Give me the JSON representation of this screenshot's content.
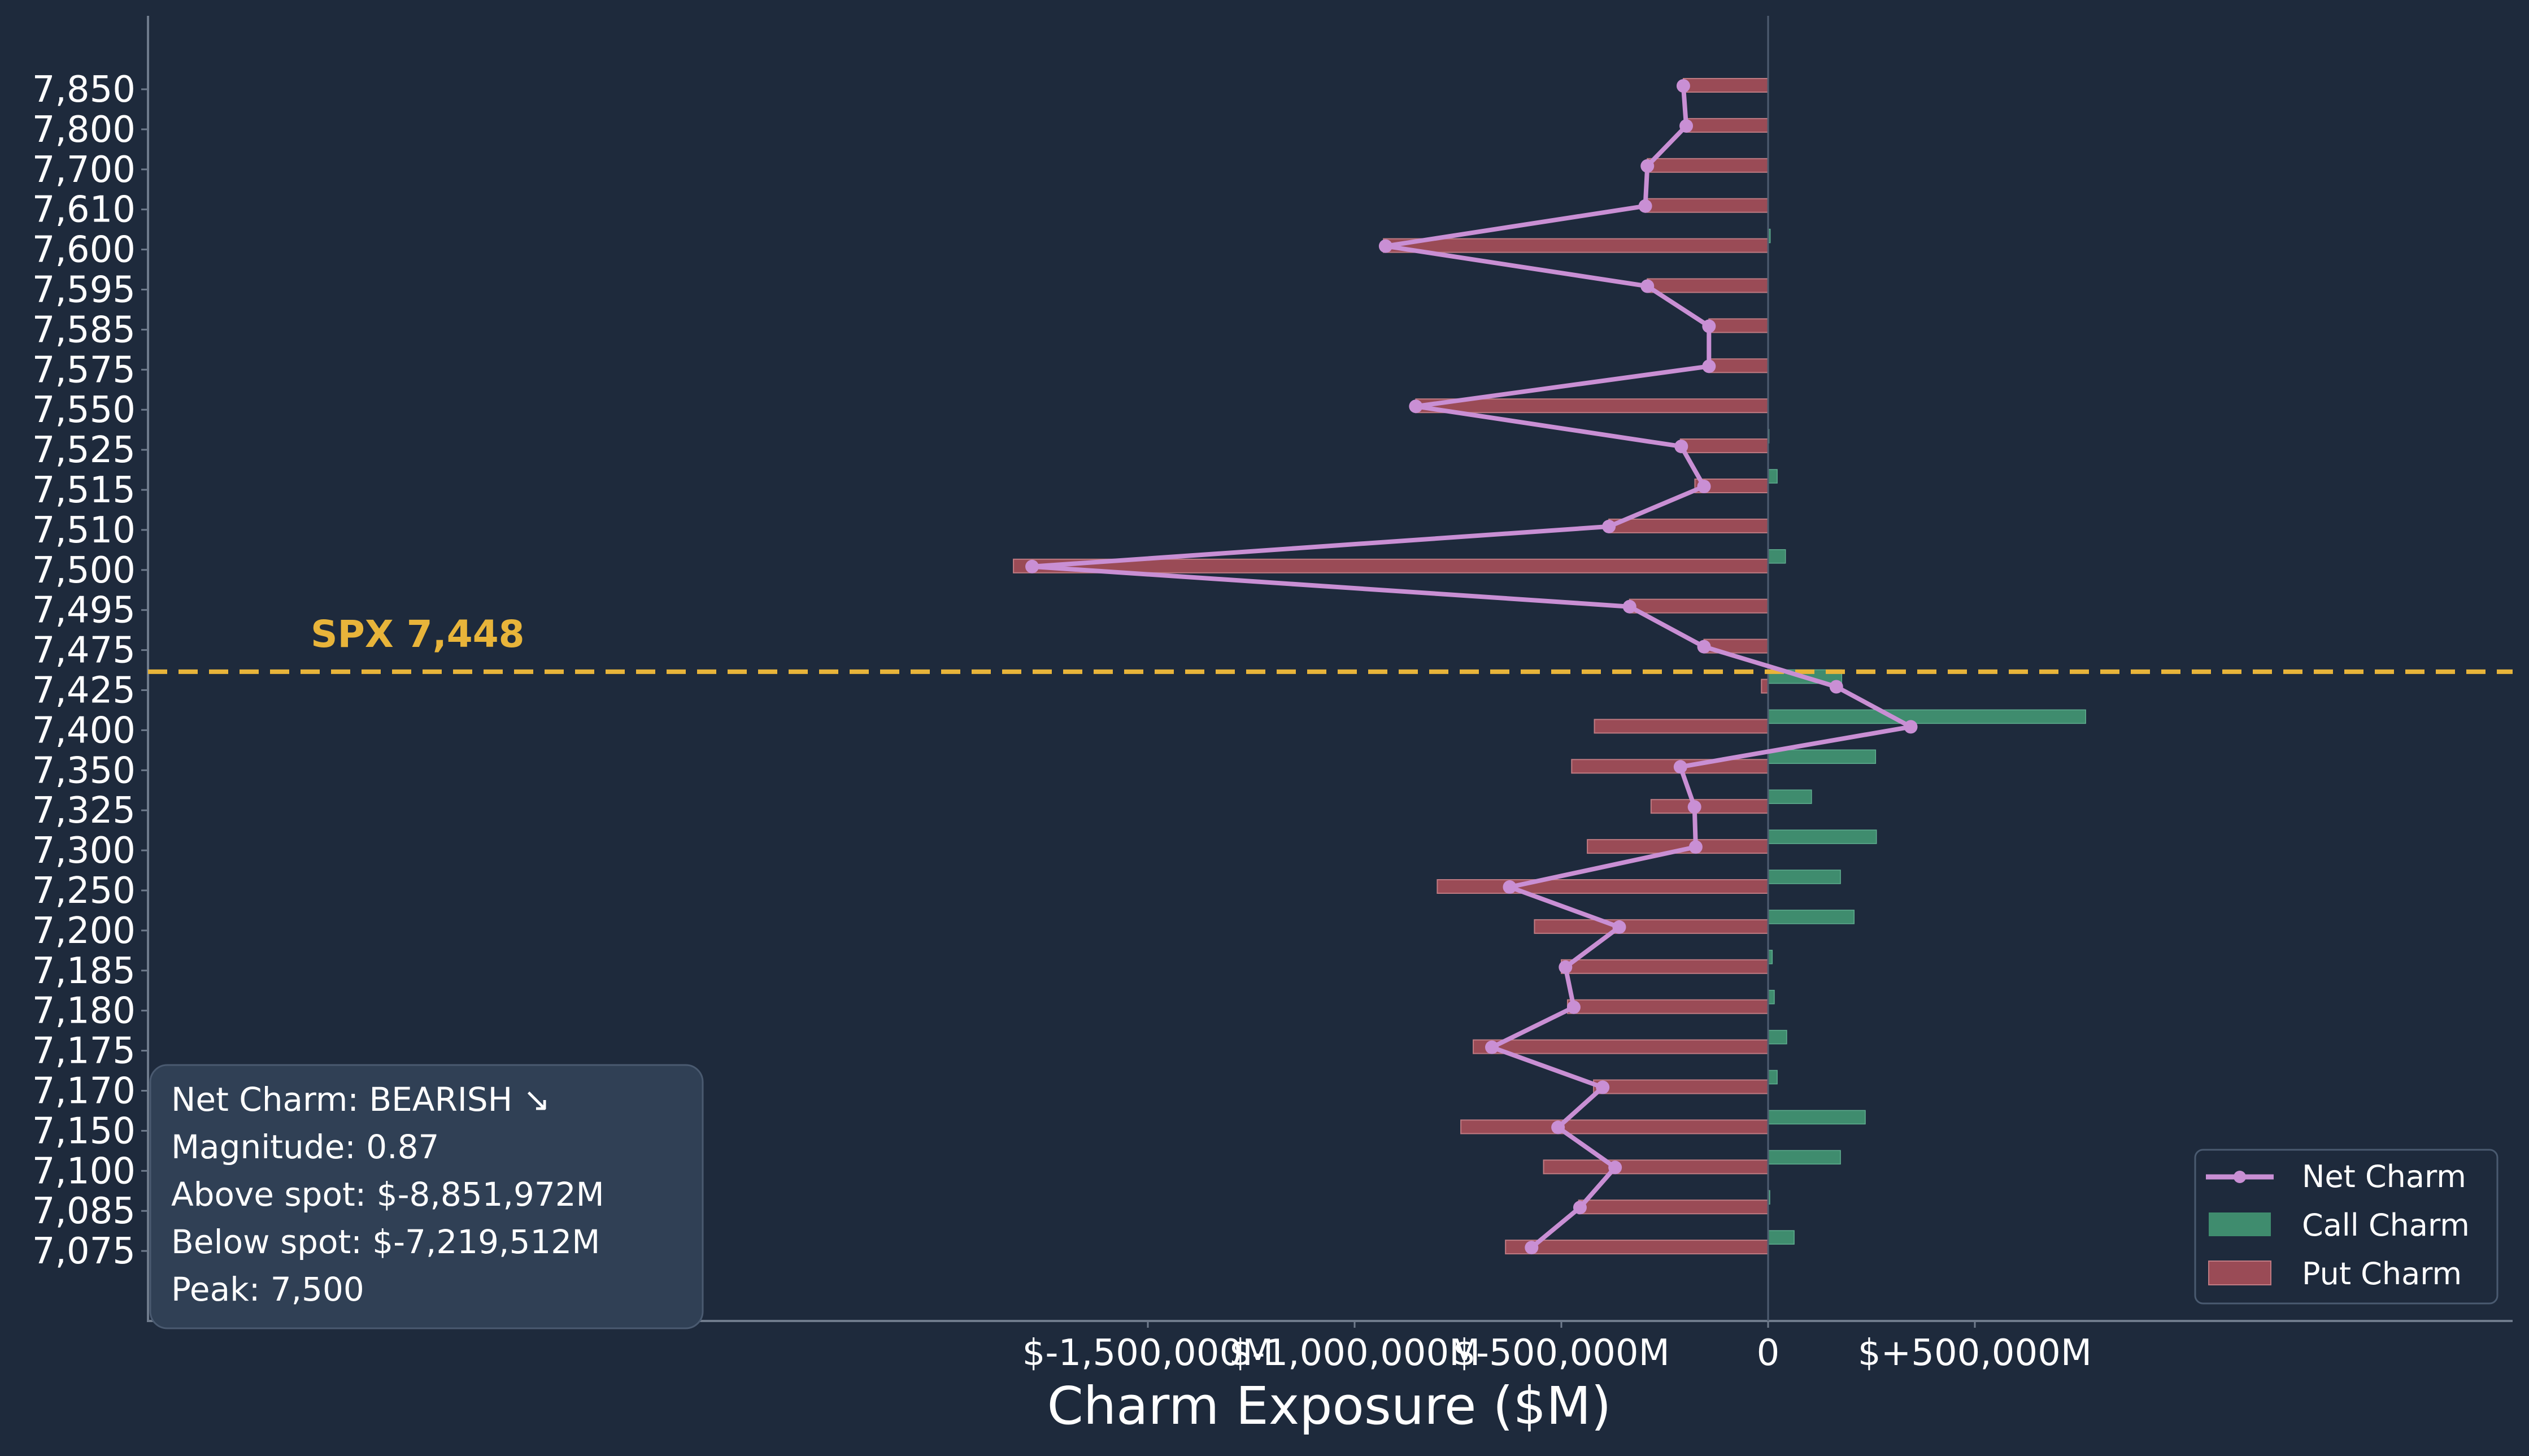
{
  "chart_data": {
    "type": "bar",
    "orientation": "horizontal",
    "xlabel": "Charm Exposure ($M)",
    "ylabel": "",
    "xlim": [
      -1950000,
      900000
    ],
    "categories": [
      "7,850",
      "7,800",
      "7,700",
      "7,610",
      "7,600",
      "7,595",
      "7,585",
      "7,575",
      "7,550",
      "7,525",
      "7,515",
      "7,510",
      "7,500",
      "7,495",
      "7,475",
      "7,425",
      "7,400",
      "7,350",
      "7,325",
      "7,300",
      "7,250",
      "7,200",
      "7,185",
      "7,180",
      "7,175",
      "7,170",
      "7,150",
      "7,100",
      "7,085",
      "7,075"
    ],
    "x_ticks": [
      {
        "value": -1500000,
        "label": "$-1,500,000M"
      },
      {
        "value": -1000000,
        "label": "$-1,000,000M"
      },
      {
        "value": -500000,
        "label": "$-500,000M"
      },
      {
        "value": 0,
        "label": "0"
      },
      {
        "value": 500000,
        "label": "$+500,000M"
      }
    ],
    "series": [
      {
        "name": "Net Charm",
        "kind": "line",
        "values": [
          -205000,
          -198000,
          -292000,
          -297000,
          -925000,
          -292000,
          -143000,
          -143000,
          -852000,
          -210000,
          -155000,
          -385000,
          -1780000,
          -335000,
          -155000,
          165000,
          345000,
          -212000,
          -178000,
          -175000,
          -625000,
          -360000,
          -490000,
          -470000,
          -668000,
          -400000,
          -508000,
          -370000,
          -455000,
          -572000
        ]
      },
      {
        "name": "Call Charm",
        "kind": "bar",
        "values": [
          0,
          0,
          0,
          0,
          5000,
          0,
          0,
          0,
          0,
          2000,
          22000,
          0,
          42000,
          0,
          0,
          178000,
          768000,
          260000,
          105000,
          262000,
          175000,
          208000,
          10000,
          15000,
          45000,
          22000,
          235000,
          175000,
          4000,
          63000
        ]
      },
      {
        "name": "Put Charm",
        "kind": "bar",
        "values": [
          -205000,
          -198000,
          -292000,
          -297000,
          -930000,
          -292000,
          -143000,
          -143000,
          -852000,
          -212000,
          -177000,
          -385000,
          -1825000,
          -335000,
          -155000,
          -16000,
          -420000,
          -475000,
          -283000,
          -437000,
          -800000,
          -565000,
          -500000,
          -485000,
          -713000,
          -422000,
          -743000,
          -543000,
          -458000,
          -635000
        ]
      }
    ],
    "spot": {
      "value": 7448,
      "label": "SPX 7,448"
    },
    "legend_position": "bottom-right",
    "grid": false
  },
  "info_box": {
    "lines": [
      "Net Charm: BEARISH ↘",
      "Magnitude: 0.87",
      "Above spot: $-8,851,972M",
      "Below spot: $-7,219,512M",
      "Peak: 7,500"
    ]
  },
  "colors": {
    "background": "#1e2a3c",
    "net": "#c98fd4",
    "call": "#3f8c6e",
    "put": "#9a4b56",
    "spot": "#e8b43a",
    "axis": "#6f7b8c",
    "text": "#ffffff"
  }
}
